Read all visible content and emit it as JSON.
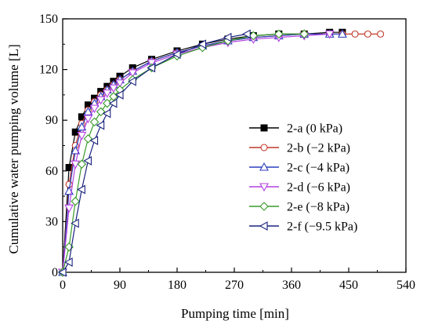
{
  "chart_data": {
    "type": "line",
    "title": "",
    "xlabel": "Pumping time [min]",
    "ylabel": "Cumulative water pumping volume [L]",
    "xlim": [
      0,
      540
    ],
    "ylim": [
      0,
      150
    ],
    "xticks": [
      0,
      90,
      180,
      270,
      360,
      450,
      540
    ],
    "yticks": [
      0,
      30,
      60,
      90,
      120,
      150
    ],
    "grid": false,
    "legend_position": "center-right",
    "series": [
      {
        "name": "2-a (0 kPa)",
        "color": "#000000",
        "marker": "square-filled",
        "x": [
          0,
          10,
          20,
          30,
          40,
          50,
          60,
          70,
          80,
          90,
          110,
          140,
          180,
          220,
          260,
          300,
          340,
          380,
          420,
          440
        ],
        "y": [
          0,
          62,
          83,
          92,
          99,
          103,
          107,
          110,
          113,
          116,
          121,
          126,
          131,
          135,
          138,
          140,
          141,
          141,
          142,
          142
        ]
      },
      {
        "name": "2-b (−2 kPa)",
        "color": "#c0392b",
        "marker": "circle-open",
        "x": [
          0,
          10,
          20,
          30,
          40,
          50,
          60,
          70,
          80,
          90,
          110,
          140,
          180,
          220,
          260,
          300,
          340,
          380,
          420,
          440,
          460,
          480,
          500
        ],
        "y": [
          0,
          52,
          75,
          88,
          96,
          101,
          105,
          108,
          111,
          114,
          119,
          125,
          130,
          134,
          137,
          139,
          140,
          141,
          141,
          141,
          141,
          141,
          141
        ]
      },
      {
        "name": "2-c (−4 kPa)",
        "color": "#2c3fbd",
        "marker": "triangle-up-open",
        "x": [
          0,
          10,
          20,
          30,
          40,
          50,
          60,
          70,
          80,
          90,
          110,
          140,
          180,
          220,
          260,
          300,
          340,
          380,
          420,
          440
        ],
        "y": [
          0,
          48,
          72,
          86,
          95,
          100,
          104,
          108,
          111,
          114,
          119,
          125,
          130,
          134,
          137,
          139,
          140,
          141,
          141,
          141
        ]
      },
      {
        "name": "2-d (−6 kPa)",
        "color": "#b040e0",
        "marker": "triangle-down-open",
        "x": [
          0,
          10,
          20,
          30,
          40,
          50,
          60,
          70,
          80,
          90,
          110,
          140,
          180,
          220,
          260,
          300,
          340,
          380,
          420
        ],
        "y": [
          0,
          38,
          64,
          81,
          91,
          97,
          102,
          106,
          109,
          112,
          118,
          124,
          129,
          133,
          136,
          138,
          139,
          140,
          141
        ]
      },
      {
        "name": "2-e (−8 kPa)",
        "color": "#3a9a2a",
        "marker": "diamond-open",
        "x": [
          0,
          10,
          20,
          30,
          40,
          50,
          60,
          70,
          80,
          90,
          110,
          140,
          180,
          220,
          260,
          300,
          340,
          380
        ],
        "y": [
          0,
          15,
          42,
          64,
          79,
          89,
          95,
          100,
          104,
          108,
          114,
          121,
          128,
          133,
          137,
          140,
          141,
          141
        ]
      },
      {
        "name": "2-f (−9.5 kPa)",
        "color": "#1a237e",
        "marker": "triangle-left-open",
        "x": [
          0,
          10,
          20,
          30,
          40,
          50,
          60,
          70,
          80,
          90,
          110,
          140,
          180,
          220,
          260,
          290
        ],
        "y": [
          0,
          6,
          29,
          49,
          66,
          78,
          87,
          94,
          100,
          105,
          113,
          121,
          129,
          135,
          139,
          141
        ]
      }
    ]
  }
}
